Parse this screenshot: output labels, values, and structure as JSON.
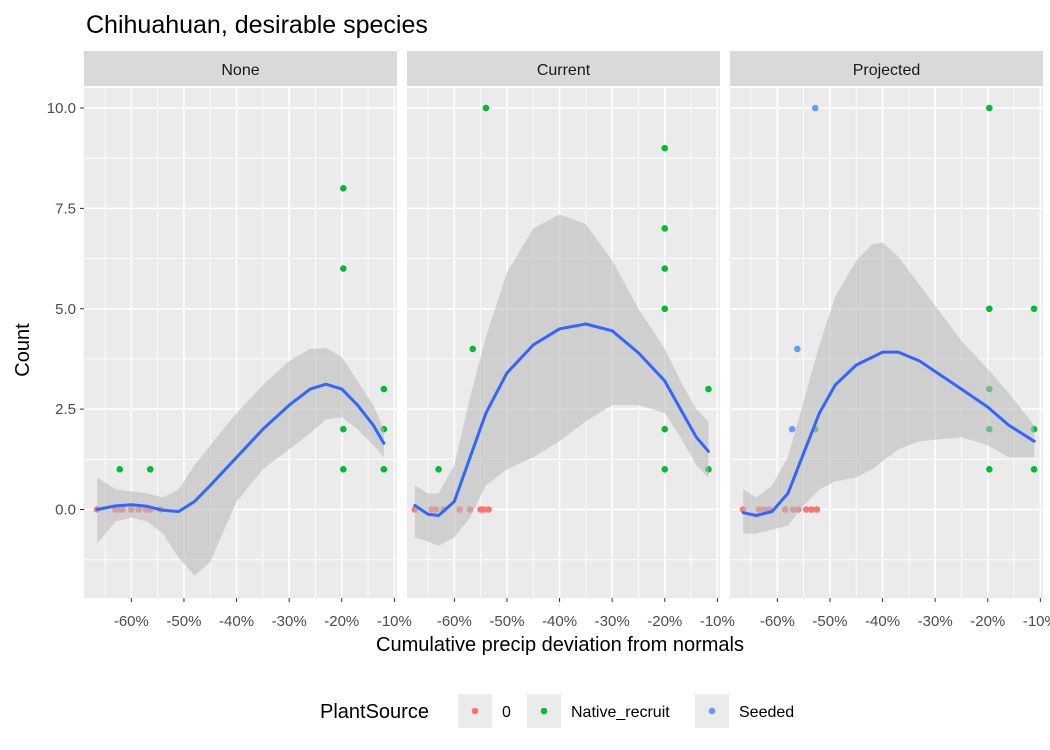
{
  "chart_data": {
    "type": "scatter",
    "title": "Chihuahuan, desirable species",
    "xlabel": "Cumulative precip deviation from normals",
    "ylabel": "Count",
    "xlim": [
      -0.69,
      -0.095
    ],
    "ylim": [
      -2.2,
      11.2
    ],
    "x_ticks": [
      {
        "value": -0.6,
        "label": "-60%"
      },
      {
        "value": -0.5,
        "label": "-50%"
      },
      {
        "value": -0.4,
        "label": "-40%"
      },
      {
        "value": -0.3,
        "label": "-30%"
      },
      {
        "value": -0.2,
        "label": "-20%"
      },
      {
        "value": -0.1,
        "label": "-10%"
      }
    ],
    "y_ticks": [
      {
        "value": 0,
        "label": "0.0"
      },
      {
        "value": 2.5,
        "label": "2.5"
      },
      {
        "value": 5,
        "label": "5.0"
      },
      {
        "value": 7.5,
        "label": "7.5"
      },
      {
        "value": 10,
        "label": "10.0"
      }
    ],
    "grid": true,
    "legend": {
      "title": "PlantSource",
      "position": "bottom",
      "entries": [
        {
          "label": "0",
          "color": "#F8766D"
        },
        {
          "label": "Native_recruit",
          "color": "#00BA38"
        },
        {
          "label": "Seeded",
          "color": "#619CFF"
        }
      ]
    },
    "colors": {
      "panel_bg": "#EBEBEB",
      "strip_bg": "#D9D9D9",
      "grid": "#FFFFFF",
      "smooth_line": "#3366FF",
      "ribbon": "#BDBDBD"
    },
    "panels": [
      {
        "strip": "None",
        "points": {
          "0": [
            [
              -0.665,
              0
            ],
            [
              -0.63,
              0
            ],
            [
              -0.622,
              0
            ],
            [
              -0.617,
              0
            ],
            [
              -0.6,
              0
            ],
            [
              -0.586,
              0
            ],
            [
              -0.572,
              0
            ],
            [
              -0.564,
              0
            ],
            [
              -0.545,
              0
            ]
          ],
          "Native_recruit": [
            [
              -0.622,
              1
            ],
            [
              -0.564,
              1
            ],
            [
              -0.197,
              8
            ],
            [
              -0.197,
              6
            ],
            [
              -0.197,
              2
            ],
            [
              -0.197,
              1
            ],
            [
              -0.12,
              3
            ],
            [
              -0.12,
              2
            ],
            [
              -0.12,
              1
            ]
          ],
          "Seeded": []
        },
        "smooth": [
          [
            -0.665,
            0.0
          ],
          [
            -0.63,
            0.09
          ],
          [
            -0.6,
            0.12
          ],
          [
            -0.57,
            0.08
          ],
          [
            -0.54,
            -0.02
          ],
          [
            -0.51,
            -0.05
          ],
          [
            -0.48,
            0.2
          ],
          [
            -0.45,
            0.6
          ],
          [
            -0.4,
            1.3
          ],
          [
            -0.35,
            2.0
          ],
          [
            -0.3,
            2.6
          ],
          [
            -0.26,
            3.0
          ],
          [
            -0.23,
            3.12
          ],
          [
            -0.2,
            3.0
          ],
          [
            -0.17,
            2.6
          ],
          [
            -0.14,
            2.1
          ],
          [
            -0.12,
            1.65
          ]
        ],
        "band_upper": [
          [
            -0.665,
            0.8
          ],
          [
            -0.63,
            0.5
          ],
          [
            -0.6,
            0.45
          ],
          [
            -0.57,
            0.4
          ],
          [
            -0.54,
            0.3
          ],
          [
            -0.51,
            0.5
          ],
          [
            -0.48,
            1.1
          ],
          [
            -0.45,
            1.6
          ],
          [
            -0.4,
            2.4
          ],
          [
            -0.35,
            3.1
          ],
          [
            -0.3,
            3.7
          ],
          [
            -0.26,
            4.0
          ],
          [
            -0.23,
            4.02
          ],
          [
            -0.2,
            3.8
          ],
          [
            -0.17,
            3.2
          ],
          [
            -0.14,
            2.6
          ],
          [
            -0.12,
            2.0
          ]
        ],
        "band_lower": [
          [
            -0.665,
            -0.85
          ],
          [
            -0.63,
            -0.3
          ],
          [
            -0.6,
            -0.2
          ],
          [
            -0.57,
            -0.3
          ],
          [
            -0.54,
            -0.6
          ],
          [
            -0.51,
            -1.2
          ],
          [
            -0.48,
            -1.65
          ],
          [
            -0.45,
            -1.3
          ],
          [
            -0.4,
            0.2
          ],
          [
            -0.35,
            1.0
          ],
          [
            -0.3,
            1.5
          ],
          [
            -0.26,
            1.9
          ],
          [
            -0.23,
            2.25
          ],
          [
            -0.2,
            2.3
          ],
          [
            -0.17,
            2.0
          ],
          [
            -0.14,
            1.6
          ],
          [
            -0.12,
            1.3
          ]
        ]
      },
      {
        "strip": "Current",
        "points": {
          "0": [
            [
              -0.675,
              0
            ],
            [
              -0.643,
              0
            ],
            [
              -0.635,
              0
            ],
            [
              -0.62,
              0
            ],
            [
              -0.59,
              0
            ],
            [
              -0.57,
              0
            ],
            [
              -0.55,
              0
            ],
            [
              -0.545,
              0
            ],
            [
              -0.535,
              0
            ]
          ],
          "Native_recruit": [
            [
              -0.63,
              1
            ],
            [
              -0.565,
              4
            ],
            [
              -0.54,
              10
            ],
            [
              -0.2,
              9
            ],
            [
              -0.2,
              7
            ],
            [
              -0.2,
              6
            ],
            [
              -0.2,
              5
            ],
            [
              -0.2,
              2
            ],
            [
              -0.2,
              1
            ],
            [
              -0.117,
              3
            ],
            [
              -0.117,
              1
            ]
          ],
          "Seeded": []
        },
        "smooth": [
          [
            -0.675,
            0.1
          ],
          [
            -0.65,
            -0.12
          ],
          [
            -0.63,
            -0.15
          ],
          [
            -0.6,
            0.2
          ],
          [
            -0.57,
            1.3
          ],
          [
            -0.54,
            2.4
          ],
          [
            -0.5,
            3.4
          ],
          [
            -0.45,
            4.1
          ],
          [
            -0.4,
            4.5
          ],
          [
            -0.35,
            4.62
          ],
          [
            -0.3,
            4.45
          ],
          [
            -0.25,
            3.9
          ],
          [
            -0.2,
            3.2
          ],
          [
            -0.17,
            2.5
          ],
          [
            -0.14,
            1.8
          ],
          [
            -0.117,
            1.45
          ]
        ],
        "band_upper": [
          [
            -0.675,
            0.6
          ],
          [
            -0.65,
            0.4
          ],
          [
            -0.63,
            0.4
          ],
          [
            -0.6,
            1.1
          ],
          [
            -0.57,
            2.8
          ],
          [
            -0.54,
            4.3
          ],
          [
            -0.5,
            5.9
          ],
          [
            -0.45,
            7.0
          ],
          [
            -0.4,
            7.35
          ],
          [
            -0.35,
            7.1
          ],
          [
            -0.3,
            6.2
          ],
          [
            -0.25,
            5.0
          ],
          [
            -0.2,
            4.0
          ],
          [
            -0.17,
            3.2
          ],
          [
            -0.14,
            2.5
          ],
          [
            -0.117,
            2.2
          ]
        ],
        "band_lower": [
          [
            -0.675,
            -0.7
          ],
          [
            -0.65,
            -0.8
          ],
          [
            -0.63,
            -0.9
          ],
          [
            -0.6,
            -0.7
          ],
          [
            -0.57,
            -0.2
          ],
          [
            -0.54,
            0.6
          ],
          [
            -0.5,
            1.0
          ],
          [
            -0.45,
            1.3
          ],
          [
            -0.4,
            1.7
          ],
          [
            -0.35,
            2.2
          ],
          [
            -0.3,
            2.6
          ],
          [
            -0.25,
            2.6
          ],
          [
            -0.2,
            2.4
          ],
          [
            -0.17,
            1.8
          ],
          [
            -0.14,
            1.1
          ],
          [
            -0.117,
            0.8
          ]
        ]
      },
      {
        "strip": "Projected",
        "points": {
          "0": [
            [
              -0.665,
              0
            ],
            [
              -0.635,
              0
            ],
            [
              -0.625,
              0
            ],
            [
              -0.615,
              0
            ],
            [
              -0.585,
              0
            ],
            [
              -0.57,
              0
            ],
            [
              -0.56,
              0
            ],
            [
              -0.545,
              0
            ],
            [
              -0.535,
              0
            ],
            [
              -0.525,
              0
            ]
          ],
          "Native_recruit": [
            [
              -0.528,
              2
            ],
            [
              -0.197,
              10
            ],
            [
              -0.197,
              5
            ],
            [
              -0.197,
              3
            ],
            [
              -0.197,
              2
            ],
            [
              -0.197,
              1
            ],
            [
              -0.112,
              5
            ],
            [
              -0.112,
              2
            ],
            [
              -0.112,
              1
            ]
          ],
          "Seeded": [
            [
              -0.528,
              10
            ],
            [
              -0.562,
              4
            ],
            [
              -0.572,
              2
            ]
          ]
        },
        "smooth": [
          [
            -0.665,
            -0.08
          ],
          [
            -0.64,
            -0.15
          ],
          [
            -0.61,
            -0.05
          ],
          [
            -0.58,
            0.4
          ],
          [
            -0.55,
            1.4
          ],
          [
            -0.52,
            2.4
          ],
          [
            -0.49,
            3.1
          ],
          [
            -0.45,
            3.6
          ],
          [
            -0.4,
            3.92
          ],
          [
            -0.37,
            3.92
          ],
          [
            -0.33,
            3.7
          ],
          [
            -0.29,
            3.35
          ],
          [
            -0.25,
            3.0
          ],
          [
            -0.2,
            2.55
          ],
          [
            -0.16,
            2.1
          ],
          [
            -0.112,
            1.7
          ]
        ],
        "band_upper": [
          [
            -0.665,
            0.5
          ],
          [
            -0.64,
            0.3
          ],
          [
            -0.61,
            0.6
          ],
          [
            -0.58,
            1.3
          ],
          [
            -0.55,
            2.7
          ],
          [
            -0.52,
            4.1
          ],
          [
            -0.49,
            5.3
          ],
          [
            -0.45,
            6.2
          ],
          [
            -0.42,
            6.6
          ],
          [
            -0.4,
            6.65
          ],
          [
            -0.37,
            6.3
          ],
          [
            -0.33,
            5.6
          ],
          [
            -0.29,
            4.9
          ],
          [
            -0.25,
            4.2
          ],
          [
            -0.2,
            3.5
          ],
          [
            -0.16,
            2.9
          ],
          [
            -0.112,
            2.1
          ]
        ],
        "band_lower": [
          [
            -0.665,
            -0.6
          ],
          [
            -0.64,
            -0.6
          ],
          [
            -0.61,
            -0.5
          ],
          [
            -0.58,
            -0.4
          ],
          [
            -0.55,
            0.1
          ],
          [
            -0.52,
            0.5
          ],
          [
            -0.49,
            0.7
          ],
          [
            -0.45,
            0.8
          ],
          [
            -0.42,
            1.0
          ],
          [
            -0.4,
            1.2
          ],
          [
            -0.37,
            1.5
          ],
          [
            -0.33,
            1.7
          ],
          [
            -0.29,
            1.75
          ],
          [
            -0.25,
            1.8
          ],
          [
            -0.2,
            1.6
          ],
          [
            -0.16,
            1.3
          ],
          [
            -0.112,
            1.3
          ]
        ]
      }
    ]
  }
}
